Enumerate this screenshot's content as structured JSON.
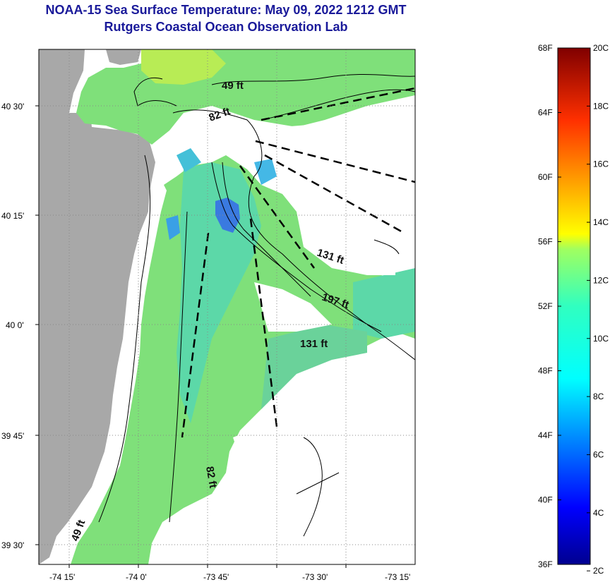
{
  "title": {
    "line1": "NOAA-15 Sea Surface Temperature:  May 09, 2022 1212 GMT",
    "line2": "Rutgers Coastal Ocean Observation Lab"
  },
  "map": {
    "x_ticks": [
      "-74 15'",
      "-74 0'",
      "-73 45'",
      "-73 30'",
      "-73 15'"
    ],
    "y_ticks": [
      "40 30'",
      "40 15'",
      "40 0'",
      "39 45'",
      "39 30'"
    ],
    "depth_labels": [
      "49 ft",
      "82 ft",
      "131 ft",
      "197 ft",
      "131 ft",
      "82 ft",
      "49 ft"
    ],
    "colors": {
      "land": "#a8a8a8",
      "water_cool": "#59e699",
      "water_warm": "#a5ee5a",
      "water_cold": "#1aa6e6",
      "water_deep_cold": "#2a5ae6",
      "cloud": "#ffffff"
    }
  },
  "colorbar": {
    "fahrenheit": [
      "68F",
      "64F",
      "60F",
      "56F",
      "52F",
      "48F",
      "44F",
      "40F",
      "36F"
    ],
    "celsius": [
      "20C",
      "18C",
      "16C",
      "14C",
      "12C",
      "10C",
      "8C",
      "6C",
      "4C",
      "2C"
    ],
    "range_f": [
      36,
      68
    ],
    "range_c": [
      2,
      20
    ],
    "colormap": "jet"
  }
}
